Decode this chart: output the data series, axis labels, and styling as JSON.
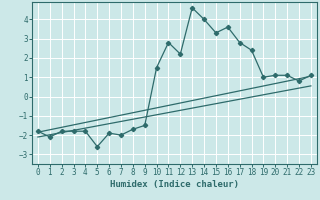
{
  "xlabel": "Humidex (Indice chaleur)",
  "xlim": [
    -0.5,
    23.5
  ],
  "ylim": [
    -3.5,
    4.9
  ],
  "yticks": [
    -3,
    -2,
    -1,
    0,
    1,
    2,
    3,
    4
  ],
  "xticks": [
    0,
    1,
    2,
    3,
    4,
    5,
    6,
    7,
    8,
    9,
    10,
    11,
    12,
    13,
    14,
    15,
    16,
    17,
    18,
    19,
    20,
    21,
    22,
    23
  ],
  "bg_color": "#cce8e8",
  "line_color": "#2e6b6b",
  "curve_x": [
    0,
    1,
    2,
    3,
    4,
    5,
    6,
    7,
    8,
    9,
    10,
    11,
    12,
    13,
    14,
    15,
    16,
    17,
    18,
    19,
    20,
    21,
    22,
    23
  ],
  "curve_y": [
    -1.8,
    -2.1,
    -1.8,
    -1.8,
    -1.8,
    -2.6,
    -1.9,
    -2.0,
    -1.7,
    -1.5,
    1.5,
    2.8,
    2.2,
    4.6,
    4.0,
    3.3,
    3.6,
    2.8,
    2.4,
    1.0,
    1.1,
    1.1,
    0.8,
    1.1
  ],
  "line1_x": [
    0,
    23
  ],
  "line1_y": [
    -2.1,
    0.55
  ],
  "line2_x": [
    0,
    23
  ],
  "line2_y": [
    -1.85,
    1.05
  ]
}
